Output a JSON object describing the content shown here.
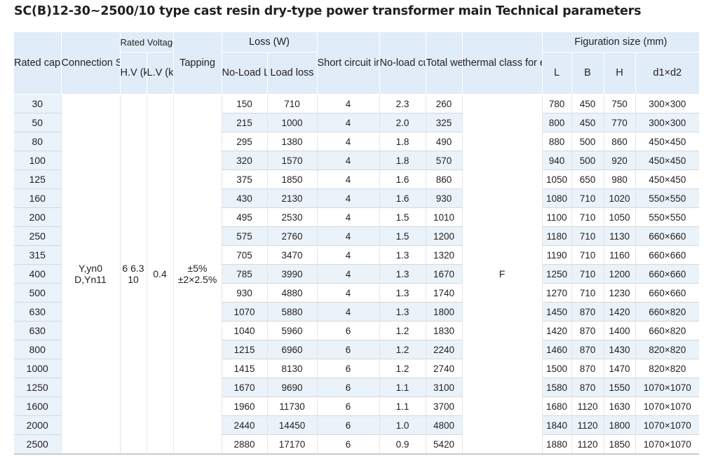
{
  "title": "SC(B)12-30~2500/10 type cast resin dry-type power transformer main Technical parameters",
  "headers": {
    "rated_capacity": "Rated capacity (kVA)",
    "connection_symbol": "Connection Symbol",
    "rated_voltage": "Rated Voltage",
    "hv": "H.V (kV)",
    "lv": "L.V (kV)",
    "tapping": "Tapping",
    "loss": "Loss (W)",
    "no_load_loss": "No-Load Loss",
    "load_loss": "Load loss",
    "short_circuit": "Short circuit impedance (%)",
    "no_load_current": "No-load current (%)",
    "total_weight": "Total weight (kg)",
    "thermal_class": "thermal class for electric machine insulation",
    "figuration": "Figuration size (mm)",
    "L": "L",
    "B": "B",
    "H": "H",
    "d1d2": "d1×d2"
  },
  "merged": {
    "connection": "Y,yn0 D,Yn11",
    "hv": "6 6.3 10",
    "lv": "0.4",
    "tapping": "±5% ±2×2.5%",
    "thermal": "F"
  },
  "rows": [
    {
      "capacity": "30",
      "nl_loss": "150",
      "load_loss": "710",
      "impedance": "4",
      "nl_current": "2.3",
      "weight": "260",
      "L": "780",
      "B": "450",
      "H": "750",
      "d1d2": "300×300"
    },
    {
      "capacity": "50",
      "nl_loss": "215",
      "load_loss": "1000",
      "impedance": "4",
      "nl_current": "2.0",
      "weight": "325",
      "L": "800",
      "B": "450",
      "H": "770",
      "d1d2": "300×300"
    },
    {
      "capacity": "80",
      "nl_loss": "295",
      "load_loss": "1380",
      "impedance": "4",
      "nl_current": "1.8",
      "weight": "490",
      "L": "880",
      "B": "500",
      "H": "860",
      "d1d2": "450×450"
    },
    {
      "capacity": "100",
      "nl_loss": "320",
      "load_loss": "1570",
      "impedance": "4",
      "nl_current": "1.8",
      "weight": "570",
      "L": "940",
      "B": "500",
      "H": "920",
      "d1d2": "450×450"
    },
    {
      "capacity": "125",
      "nl_loss": "375",
      "load_loss": "1850",
      "impedance": "4",
      "nl_current": "1.6",
      "weight": "860",
      "L": "1050",
      "B": "650",
      "H": "980",
      "d1d2": "450×450"
    },
    {
      "capacity": "160",
      "nl_loss": "430",
      "load_loss": "2130",
      "impedance": "4",
      "nl_current": "1.6",
      "weight": "930",
      "L": "1080",
      "B": "710",
      "H": "1020",
      "d1d2": "550×550"
    },
    {
      "capacity": "200",
      "nl_loss": "495",
      "load_loss": "2530",
      "impedance": "4",
      "nl_current": "1.5",
      "weight": "1010",
      "L": "1100",
      "B": "710",
      "H": "1050",
      "d1d2": "550×550"
    },
    {
      "capacity": "250",
      "nl_loss": "575",
      "load_loss": "2760",
      "impedance": "4",
      "nl_current": "1.5",
      "weight": "1200",
      "L": "1180",
      "B": "710",
      "H": "1130",
      "d1d2": "660×660"
    },
    {
      "capacity": "315",
      "nl_loss": "705",
      "load_loss": "3470",
      "impedance": "4",
      "nl_current": "1.3",
      "weight": "1320",
      "L": "1190",
      "B": "710",
      "H": "1160",
      "d1d2": "660×660"
    },
    {
      "capacity": "400",
      "nl_loss": "785",
      "load_loss": "3990",
      "impedance": "4",
      "nl_current": "1.3",
      "weight": "1670",
      "L": "1250",
      "B": "710",
      "H": "1200",
      "d1d2": "660×660"
    },
    {
      "capacity": "500",
      "nl_loss": "930",
      "load_loss": "4880",
      "impedance": "4",
      "nl_current": "1.3",
      "weight": "1740",
      "L": "1270",
      "B": "710",
      "H": "1230",
      "d1d2": "660×660"
    },
    {
      "capacity": "630",
      "nl_loss": "1070",
      "load_loss": "5880",
      "impedance": "4",
      "nl_current": "1.3",
      "weight": "1800",
      "L": "1450",
      "B": "870",
      "H": "1420",
      "d1d2": "660×820"
    },
    {
      "capacity": "630",
      "nl_loss": "1040",
      "load_loss": "5960",
      "impedance": "6",
      "nl_current": "1.2",
      "weight": "1830",
      "L": "1420",
      "B": "870",
      "H": "1400",
      "d1d2": "660×820"
    },
    {
      "capacity": "800",
      "nl_loss": "1215",
      "load_loss": "6960",
      "impedance": "6",
      "nl_current": "1.2",
      "weight": "2240",
      "L": "1460",
      "B": "870",
      "H": "1430",
      "d1d2": "820×820"
    },
    {
      "capacity": "1000",
      "nl_loss": "1415",
      "load_loss": "8130",
      "impedance": "6",
      "nl_current": "1.2",
      "weight": "2740",
      "L": "1500",
      "B": "870",
      "H": "1470",
      "d1d2": "820×820"
    },
    {
      "capacity": "1250",
      "nl_loss": "1670",
      "load_loss": "9690",
      "impedance": "6",
      "nl_current": "1.1",
      "weight": "3100",
      "L": "1580",
      "B": "870",
      "H": "1550",
      "d1d2": "1070×1070"
    },
    {
      "capacity": "1600",
      "nl_loss": "1960",
      "load_loss": "11730",
      "impedance": "6",
      "nl_current": "1.1",
      "weight": "3700",
      "L": "1680",
      "B": "1120",
      "H": "1630",
      "d1d2": "1070×1070"
    },
    {
      "capacity": "2000",
      "nl_loss": "2440",
      "load_loss": "14450",
      "impedance": "6",
      "nl_current": "1.0",
      "weight": "4800",
      "L": "1840",
      "B": "1120",
      "H": "1800",
      "d1d2": "1070×1070"
    },
    {
      "capacity": "2500",
      "nl_loss": "2880",
      "load_loss": "17170",
      "impedance": "6",
      "nl_current": "0.9",
      "weight": "5420",
      "L": "1880",
      "B": "1120",
      "H": "1850",
      "d1d2": "1070×1070"
    }
  ],
  "colors": {
    "header_bg": "#e0ecf7",
    "stripe_bg": "#eaf2fa",
    "text": "#231f20"
  }
}
